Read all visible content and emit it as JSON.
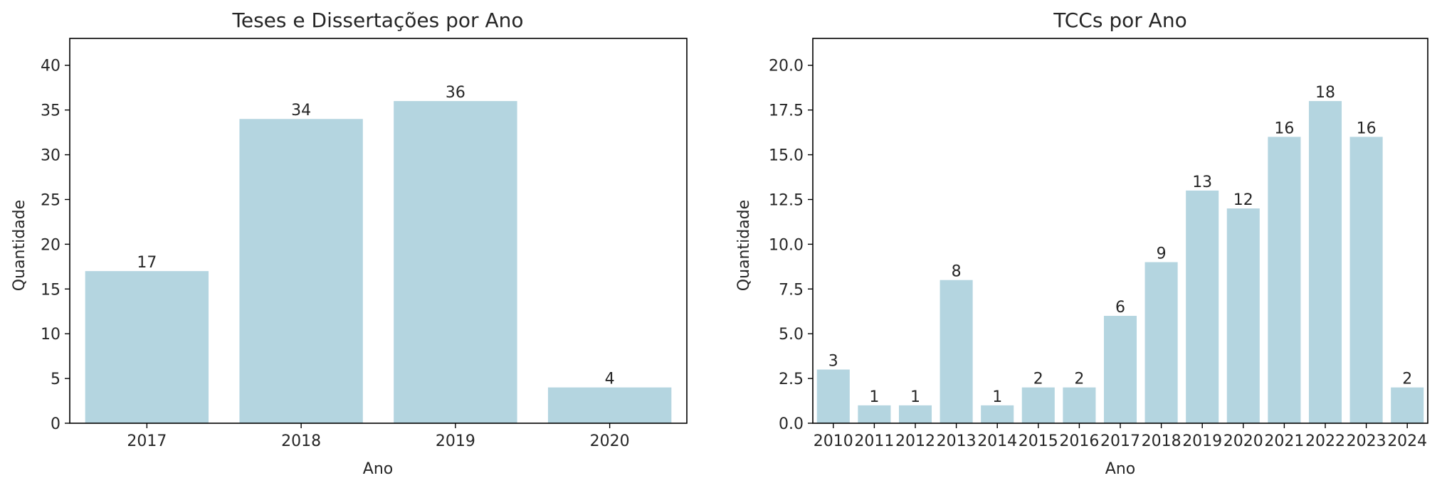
{
  "chart_data": [
    {
      "type": "bar",
      "title": "Teses e Dissertações por Ano",
      "xlabel": "Ano",
      "ylabel": "Quantidade",
      "categories": [
        "2017",
        "2018",
        "2019",
        "2020"
      ],
      "values": [
        17,
        34,
        36,
        4
      ],
      "ylim": [
        0,
        43
      ],
      "yticks": [
        "0",
        "5",
        "10",
        "15",
        "20",
        "25",
        "30",
        "35",
        "40"
      ],
      "bar_color": "#b4d5e0",
      "grid": false
    },
    {
      "type": "bar",
      "title": "TCCs por Ano",
      "xlabel": "Ano",
      "ylabel": "Quantidade",
      "categories": [
        "2010",
        "2011",
        "2012",
        "2013",
        "2014",
        "2015",
        "2016",
        "2017",
        "2018",
        "2019",
        "2020",
        "2021",
        "2022",
        "2023",
        "2024"
      ],
      "values": [
        3,
        1,
        1,
        8,
        1,
        2,
        2,
        6,
        9,
        13,
        12,
        16,
        18,
        16,
        2
      ],
      "ylim": [
        0,
        21.5
      ],
      "yticks": [
        "0.0",
        "2.5",
        "5.0",
        "7.5",
        "10.0",
        "12.5",
        "15.0",
        "17.5",
        "20.0"
      ],
      "bar_color": "#b4d5e0",
      "grid": false
    }
  ]
}
